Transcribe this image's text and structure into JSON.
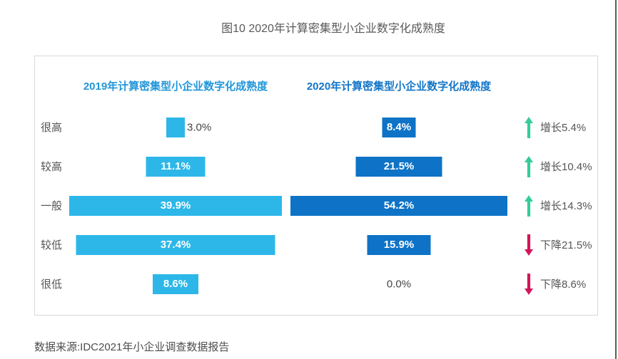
{
  "title": "图10 2020年计算密集型小企业数字化成熟度",
  "source": "数据来源:IDC2021年小企业调查数据报告",
  "columns": {
    "left_header": "2019年计算密集型小企业数字化成熟度",
    "right_header": "2020年计算密集型小企业数字化成熟度"
  },
  "colors": {
    "bar_2019": "#2db7e8",
    "bar_2020": "#0e73c6",
    "header_2019": "#2196d9",
    "header_2020": "#1376c8",
    "up_arrow": "#35cc9a",
    "down_arrow": "#d4145a",
    "text": "#555555",
    "panel_border": "#d9d9d9"
  },
  "chart_data": {
    "type": "bar",
    "orientation": "horizontal",
    "title": "图10 2020年计算密集型小企业数字化成熟度",
    "categories": [
      "很高",
      "较高",
      "一般",
      "较低",
      "很低"
    ],
    "series": [
      {
        "name": "2019年计算密集型小企业数字化成熟度",
        "values": [
          3.0,
          11.1,
          39.9,
          37.4,
          8.6
        ]
      },
      {
        "name": "2020年计算密集型小企业数字化成熟度",
        "values": [
          8.4,
          21.5,
          54.2,
          15.9,
          0.0
        ]
      }
    ],
    "value_labels": {
      "2019": [
        "3.0%",
        "11.1%",
        "39.9%",
        "37.4%",
        "8.6%"
      ],
      "2020": [
        "8.4%",
        "21.5%",
        "54.2%",
        "15.9%",
        "0.0%"
      ]
    },
    "changes": [
      {
        "direction": "up",
        "label": "增长5.4%"
      },
      {
        "direction": "up",
        "label": "增长10.4%"
      },
      {
        "direction": "up",
        "label": "增长14.3%"
      },
      {
        "direction": "down",
        "label": "下降21.5%"
      },
      {
        "direction": "down",
        "label": "下降8.6%"
      }
    ],
    "legend_position": "top",
    "grid": false,
    "notes": "each column scaled to its own maximum; bars centered within column"
  }
}
